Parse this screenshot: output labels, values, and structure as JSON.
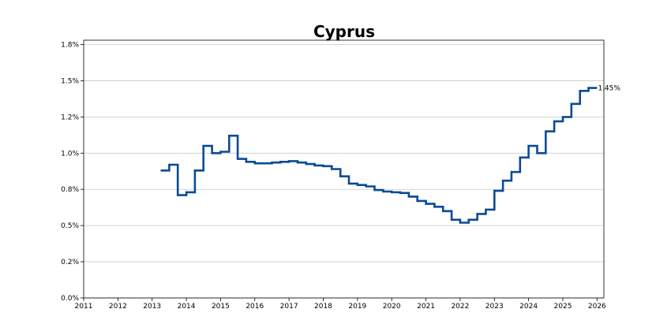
{
  "chart_data": {
    "type": "line",
    "step": true,
    "title": "Cyprus",
    "xlabel": "",
    "ylabel": "",
    "xlim": [
      2011,
      2026.2
    ],
    "ylim": [
      0,
      1.78
    ],
    "x_ticks": [
      2011,
      2012,
      2013,
      2014,
      2015,
      2016,
      2017,
      2018,
      2019,
      2020,
      2021,
      2022,
      2023,
      2024,
      2025,
      2026
    ],
    "x_tick_labels": [
      "2011",
      "2012",
      "2013",
      "2014",
      "2015",
      "2016",
      "2017",
      "2018",
      "2019",
      "2020",
      "2021",
      "2022",
      "2023",
      "2024",
      "2025",
      "2026"
    ],
    "y_ticks": [
      0,
      0.25,
      0.5,
      0.75,
      1.0,
      1.25,
      1.5,
      1.75
    ],
    "y_tick_labels": [
      "0.0%",
      "0.2%",
      "0.5%",
      "0.8%",
      "1.0%",
      "1.2%",
      "1.5%",
      "1.8%"
    ],
    "grid": "horizontal",
    "line_color": "#0a4a94",
    "series": [
      {
        "x": [
          2013.25,
          2013.5,
          2013.75,
          2014.0,
          2014.25,
          2014.5,
          2014.75,
          2015.0,
          2015.25,
          2015.5,
          2015.75,
          2016.0,
          2016.25,
          2016.5,
          2016.75,
          2017.0,
          2017.25,
          2017.5,
          2017.75,
          2018.0,
          2018.25,
          2018.5,
          2018.75,
          2019.0,
          2019.25,
          2019.5,
          2019.75,
          2020.0,
          2020.25,
          2020.5,
          2020.75,
          2021.0,
          2021.25,
          2021.5,
          2021.75,
          2022.0,
          2022.25,
          2022.5,
          2022.75,
          2023.0,
          2023.25,
          2023.5,
          2023.75,
          2024.0,
          2024.25,
          2024.5,
          2024.75,
          2025.0,
          2025.25,
          2025.5,
          2025.75
        ],
        "values": [
          0.88,
          0.92,
          0.71,
          0.73,
          0.88,
          1.05,
          1.0,
          1.01,
          1.12,
          0.96,
          0.94,
          0.93,
          0.93,
          0.935,
          0.94,
          0.945,
          0.935,
          0.925,
          0.915,
          0.91,
          0.89,
          0.84,
          0.79,
          0.78,
          0.77,
          0.745,
          0.735,
          0.73,
          0.725,
          0.7,
          0.67,
          0.65,
          0.63,
          0.6,
          0.54,
          0.52,
          0.54,
          0.58,
          0.61,
          0.74,
          0.81,
          0.87,
          0.97,
          1.05,
          1.0,
          1.15,
          1.22,
          1.25,
          1.34,
          1.43,
          1.45
        ]
      }
    ],
    "annotations": [
      {
        "x": 2025.75,
        "y": 1.45,
        "text": "1.45%"
      }
    ]
  }
}
